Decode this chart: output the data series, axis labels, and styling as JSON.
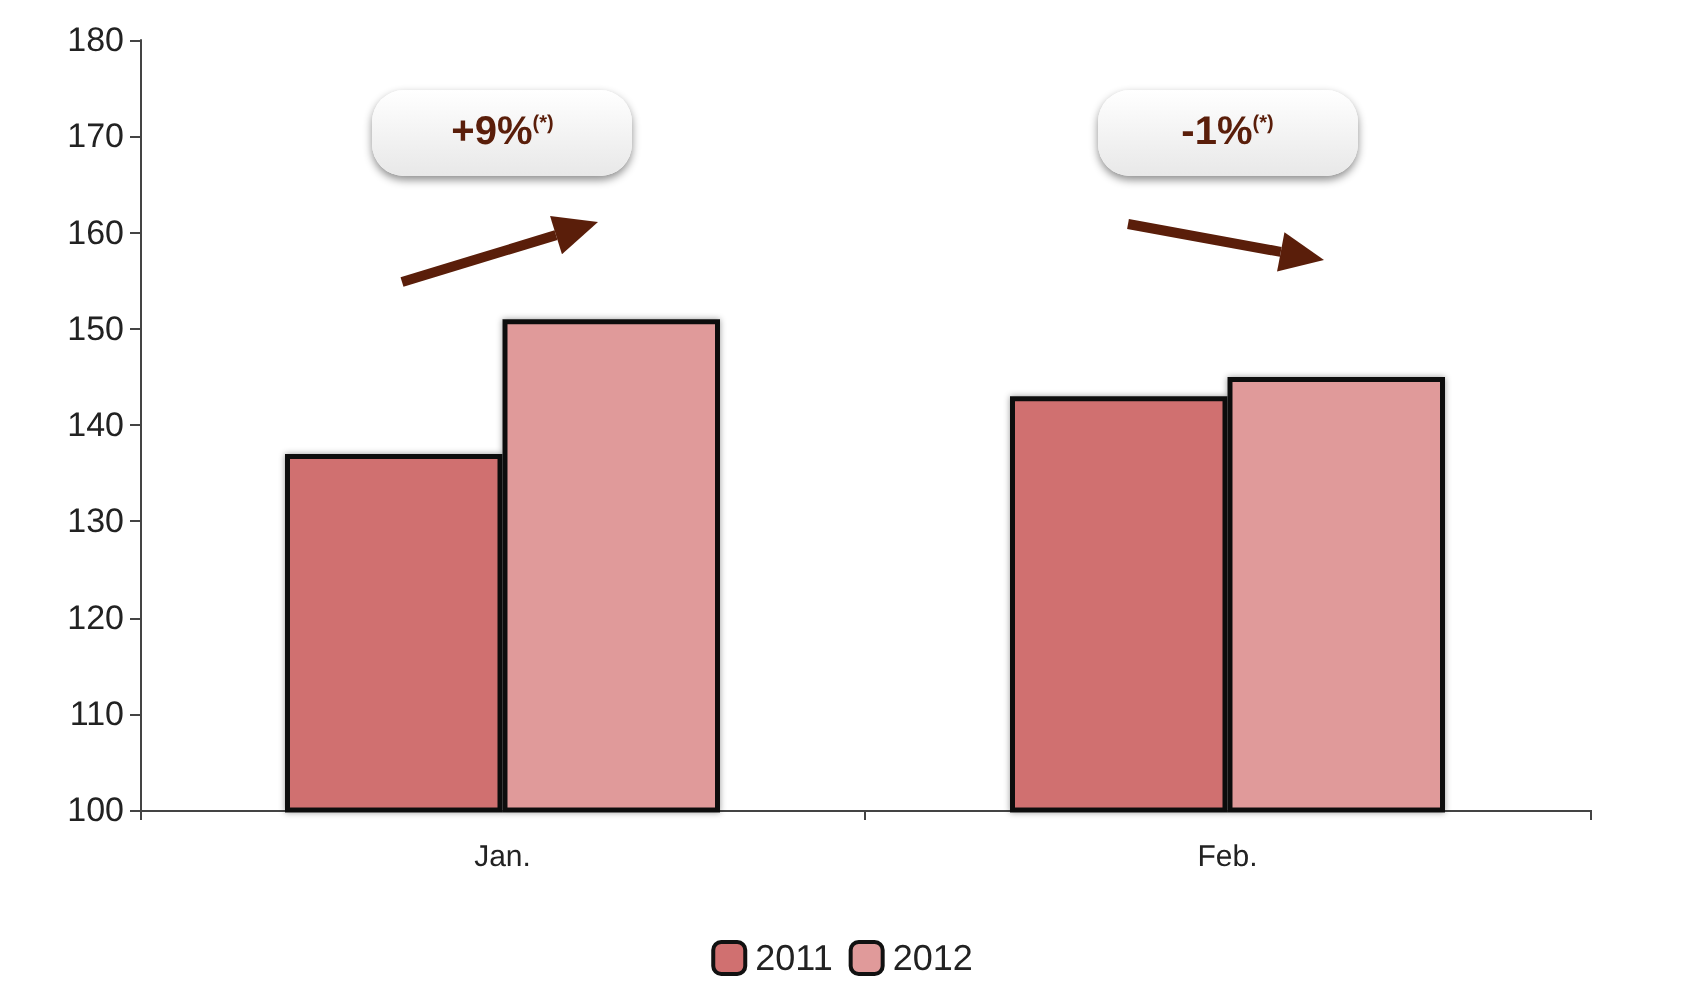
{
  "chart_data": {
    "type": "bar",
    "categories": [
      "Jan.",
      "Feb."
    ],
    "series": [
      {
        "name": "2011",
        "color": "#d07070",
        "values": [
          137,
          143
        ]
      },
      {
        "name": "2012",
        "color": "#e09a9a",
        "values": [
          151,
          145
        ]
      }
    ],
    "ylim": [
      100,
      180
    ],
    "yticks": [
      100,
      110,
      120,
      130,
      140,
      150,
      160,
      170,
      180
    ],
    "grid": false,
    "legend": "bottom",
    "annotations": [
      "+9%$^{(*)}$",
      "-1%$^{(*)}$"
    ]
  }
}
